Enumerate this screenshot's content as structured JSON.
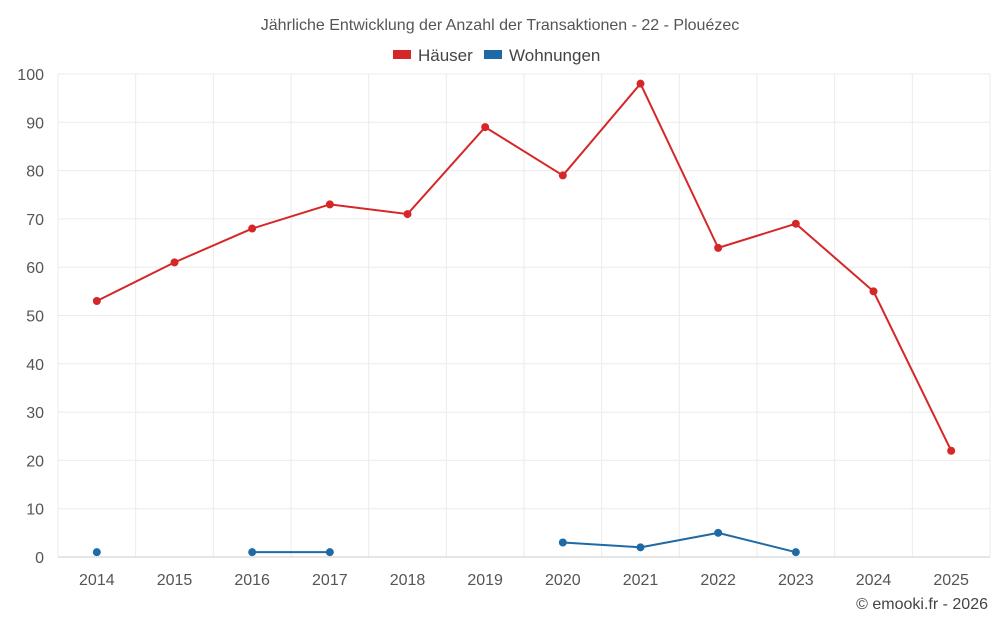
{
  "chart_data": {
    "type": "line",
    "title": "Jährliche Entwicklung der Anzahl der Transaktionen - 22 - Plouézec",
    "categories": [
      "2014",
      "2015",
      "2016",
      "2017",
      "2018",
      "2019",
      "2020",
      "2021",
      "2022",
      "2023",
      "2024",
      "2025"
    ],
    "ylim": [
      0,
      100
    ],
    "yticks": [
      0,
      10,
      20,
      30,
      40,
      50,
      60,
      70,
      80,
      90,
      100
    ],
    "ytick_labels": [
      "0",
      "10",
      "20",
      "30",
      "40",
      "50",
      "60",
      "70",
      "80",
      "90",
      "100"
    ],
    "grid": true,
    "legend_position": "top-center",
    "series": [
      {
        "name": "Häuser",
        "color": "#d62728",
        "values": [
          53,
          61,
          68,
          73,
          71,
          89,
          79,
          98,
          64,
          69,
          55,
          22
        ]
      },
      {
        "name": "Wohnungen",
        "color": "#1f6aa5",
        "values": [
          1,
          null,
          1,
          1,
          null,
          null,
          3,
          2,
          5,
          1,
          null,
          null
        ]
      }
    ],
    "credit": "© emooki.fr - 2026"
  }
}
